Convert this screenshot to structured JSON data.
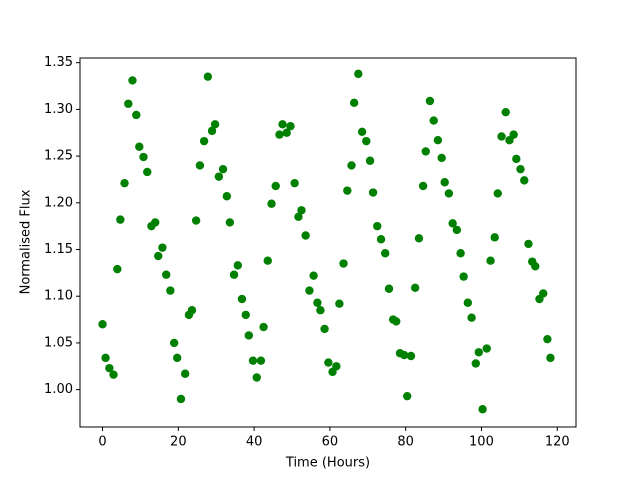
{
  "chart_data": {
    "type": "scatter",
    "x_label": "Time (Hours)",
    "y_label": "Normalised Flux",
    "color": "#008000",
    "x": [
      0,
      0.8,
      1.8,
      2.9,
      3.9,
      4.7,
      5.8,
      6.8,
      7.9,
      8.9,
      9.7,
      10.8,
      11.8,
      12.9,
      13.9,
      14.7,
      15.8,
      16.8,
      17.9,
      18.9,
      19.7,
      20.7,
      21.8,
      22.8,
      23.6,
      24.7,
      25.7,
      26.8,
      27.8,
      28.9,
      29.7,
      30.7,
      31.8,
      32.8,
      33.6,
      34.7,
      35.7,
      36.8,
      37.8,
      38.6,
      39.7,
      40.7,
      41.8,
      42.5,
      43.6,
      44.6,
      45.7,
      46.7,
      47.5,
      48.6,
      49.6,
      50.7,
      51.7,
      52.5,
      53.6,
      54.6,
      55.7,
      56.7,
      57.5,
      58.6,
      59.6,
      60.7,
      61.7,
      62.5,
      63.6,
      64.6,
      65.7,
      66.4,
      67.5,
      68.5,
      69.6,
      70.6,
      71.4,
      72.5,
      73.5,
      74.6,
      75.6,
      76.7,
      77.5,
      78.5,
      79.6,
      80.4,
      81.4,
      82.5,
      83.5,
      84.6,
      85.3,
      86.4,
      87.4,
      88.5,
      89.5,
      90.3,
      91.4,
      92.4,
      93.5,
      94.5,
      95.3,
      96.4,
      97.4,
      98.5,
      99.3,
      100.3,
      101.4,
      102.4,
      103.5,
      104.3,
      105.3,
      106.4,
      107.4,
      108.5,
      109.2,
      110.3,
      111.3,
      112.4,
      113.4,
      114.2,
      115.3,
      116.3,
      117.4,
      118.2
    ],
    "values": [
      1.07,
      1.034,
      1.023,
      1.016,
      1.129,
      1.182,
      1.221,
      1.306,
      1.331,
      1.294,
      1.26,
      1.249,
      1.233,
      1.175,
      1.179,
      1.143,
      1.152,
      1.123,
      1.106,
      1.05,
      1.034,
      0.99,
      1.017,
      1.08,
      1.085,
      1.181,
      1.24,
      1.266,
      1.335,
      1.277,
      1.284,
      1.228,
      1.236,
      1.207,
      1.179,
      1.123,
      1.133,
      1.097,
      1.08,
      1.058,
      1.031,
      1.013,
      1.031,
      1.067,
      1.138,
      1.199,
      1.218,
      1.273,
      1.284,
      1.275,
      1.282,
      1.221,
      1.185,
      1.192,
      1.165,
      1.106,
      1.122,
      1.093,
      1.085,
      1.065,
      1.029,
      1.019,
      1.025,
      1.092,
      1.135,
      1.213,
      1.24,
      1.307,
      1.338,
      1.276,
      1.266,
      1.245,
      1.211,
      1.175,
      1.161,
      1.146,
      1.108,
      1.075,
      1.073,
      1.039,
      1.037,
      0.993,
      1.036,
      1.109,
      1.162,
      1.218,
      1.255,
      1.309,
      1.288,
      1.267,
      1.248,
      1.222,
      1.21,
      1.178,
      1.171,
      1.146,
      1.121,
      1.093,
      1.077,
      1.028,
      1.04,
      0.979,
      1.044,
      1.138,
      1.163,
      1.21,
      1.271,
      1.297,
      1.267,
      1.273,
      1.247,
      1.236,
      1.224,
      1.156,
      1.137,
      1.132,
      1.097,
      1.103,
      1.054,
      1.034
    ],
    "xlim": [
      -5.95,
      124.95
    ],
    "ylim": [
      0.96,
      1.355
    ],
    "xticks": [
      0,
      20,
      40,
      60,
      80,
      100,
      120
    ],
    "yticks": [
      {
        "value": 1.0,
        "label": "1.00"
      },
      1.05,
      {
        "value": 1.1,
        "label": "1.10"
      },
      1.15,
      {
        "value": 1.2,
        "label": "1.20"
      },
      1.25,
      {
        "value": 1.3,
        "label": "1.30"
      },
      1.35
    ]
  }
}
